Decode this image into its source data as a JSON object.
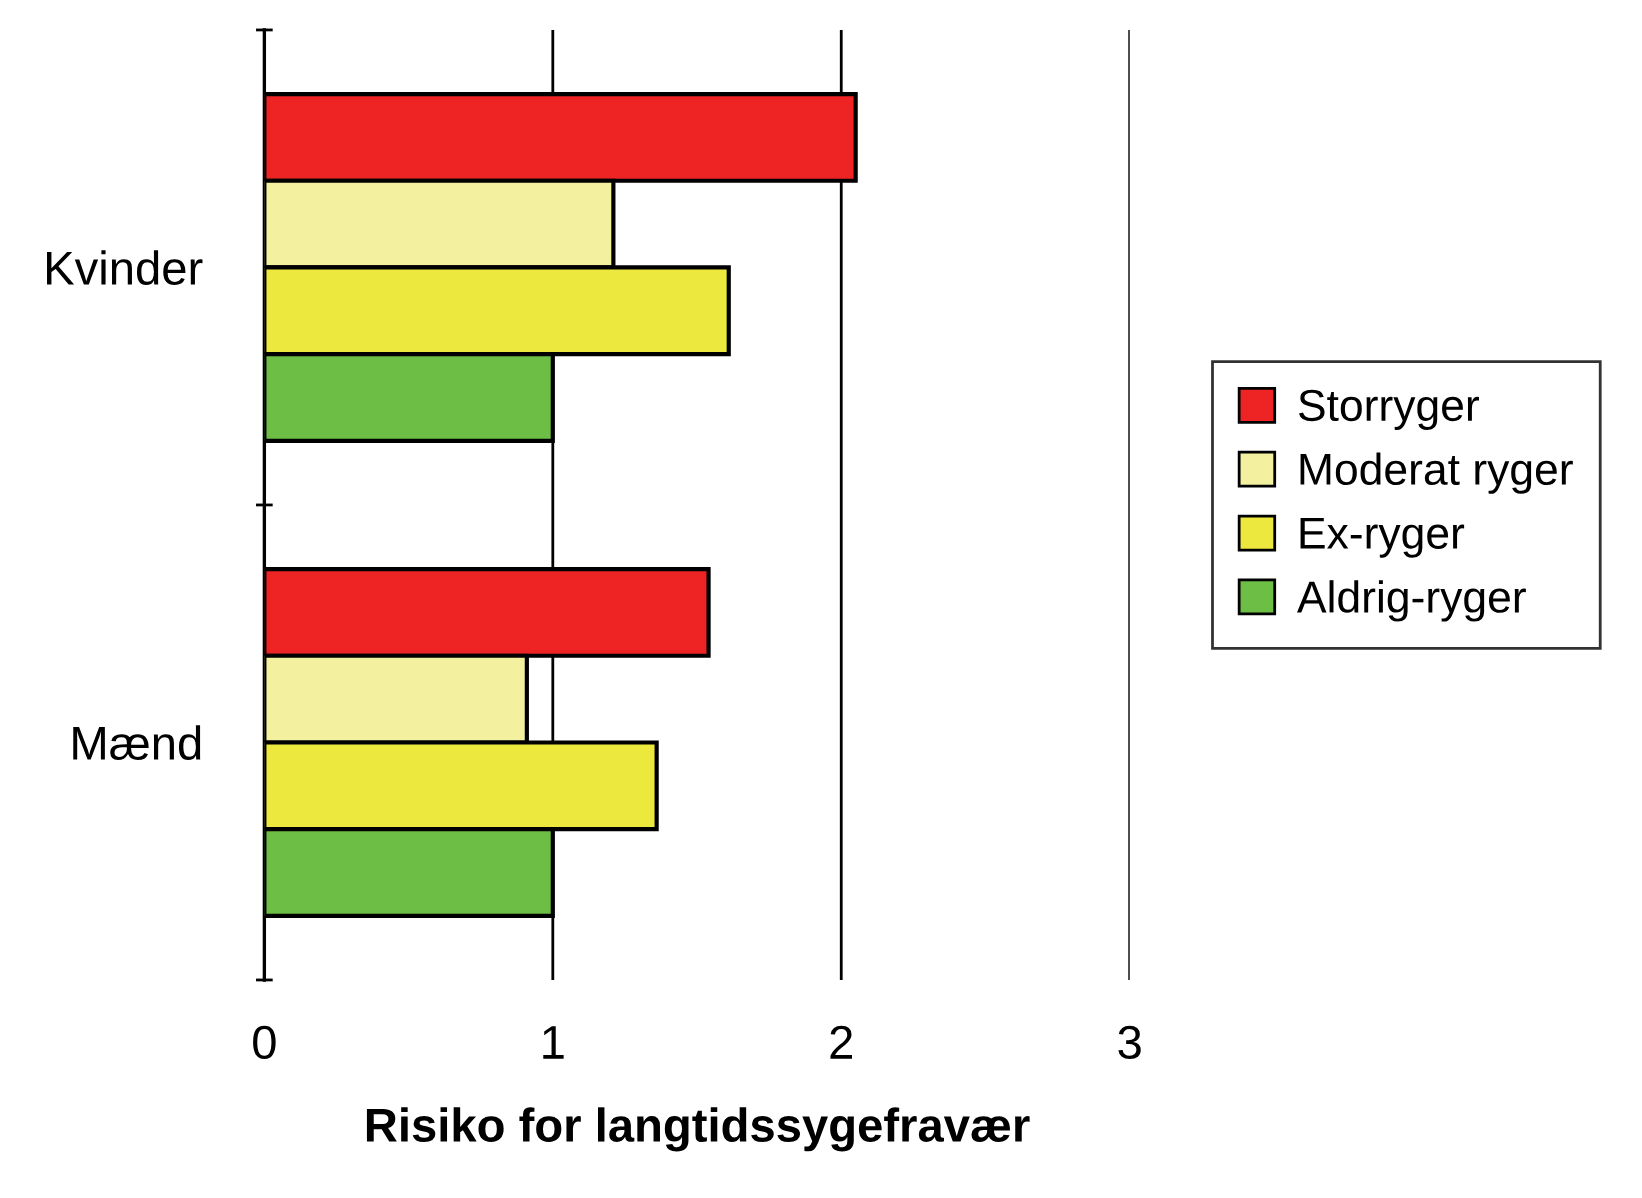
{
  "chart_data": {
    "type": "bar",
    "orientation": "horizontal",
    "xlabel": "Risiko for langtidssygefravær",
    "categories": [
      "Kvinder",
      "Mænd"
    ],
    "series": [
      {
        "name": "Storryger",
        "color": "#ee2424",
        "values": [
          2.05,
          1.54
        ]
      },
      {
        "name": "Moderat ryger",
        "color": "#f3f09f",
        "values": [
          1.21,
          0.91
        ]
      },
      {
        "name": "Ex-ryger",
        "color": "#ece83e",
        "values": [
          1.61,
          1.36
        ]
      },
      {
        "name": "Aldrig-ryger",
        "color": "#6dbe45",
        "values": [
          1.0,
          1.0
        ]
      }
    ],
    "xlim": [
      0,
      3
    ],
    "xticks": [
      0,
      1,
      2,
      3
    ],
    "grid": "x",
    "legend": "right"
  }
}
